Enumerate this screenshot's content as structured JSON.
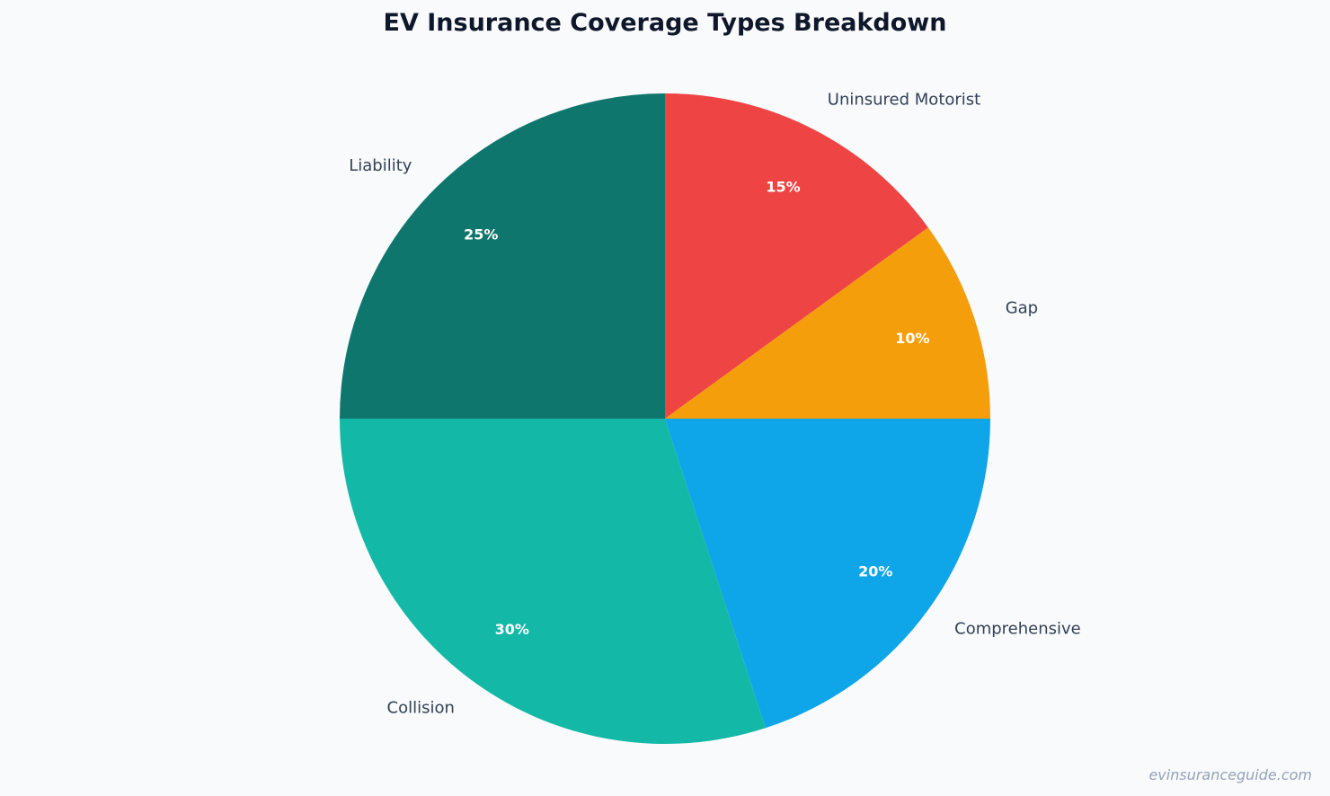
{
  "chart_data": {
    "type": "pie",
    "title": "EV Insurance Coverage Types Breakdown",
    "start": "top",
    "direction": "clockwise",
    "slices": [
      {
        "label": "Uninsured Motorist",
        "value": 15,
        "pct_label": "15%",
        "color": "#ef4444"
      },
      {
        "label": "Gap",
        "value": 10,
        "pct_label": "10%",
        "color": "#f59e0b"
      },
      {
        "label": "Comprehensive",
        "value": 20,
        "pct_label": "20%",
        "color": "#0ea5e9"
      },
      {
        "label": "Collision",
        "value": 30,
        "pct_label": "30%",
        "color": "#14b8a6"
      },
      {
        "label": "Liability",
        "value": 25,
        "pct_label": "25%",
        "color": "#0f766e"
      }
    ]
  },
  "watermark": "evinsuranceguide.com"
}
